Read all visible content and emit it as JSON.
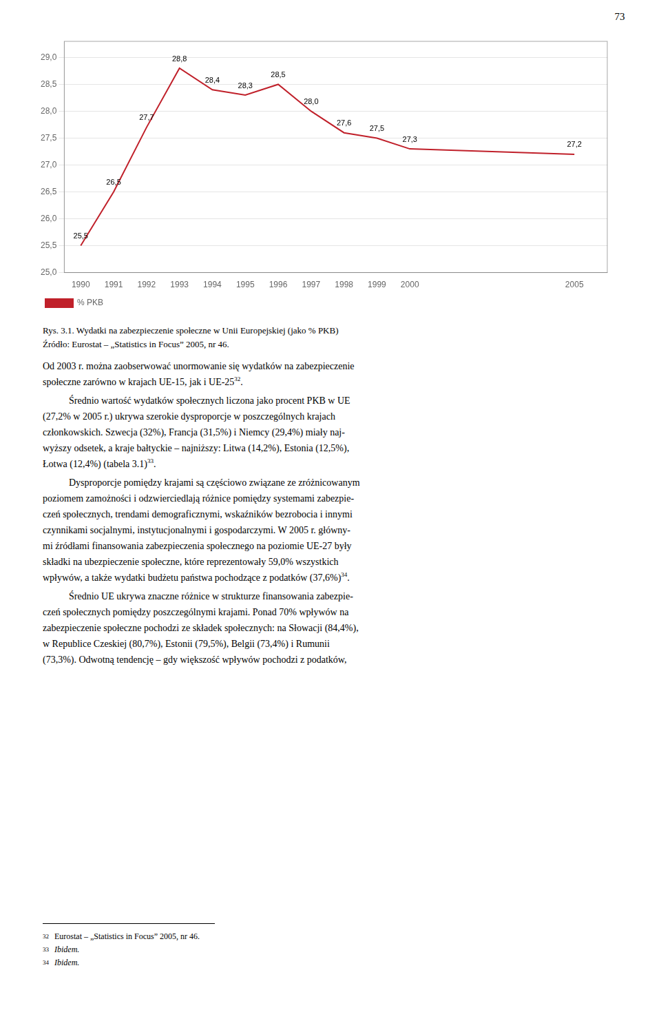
{
  "page_number": "73",
  "chart_data": {
    "type": "line",
    "title": "Rys. 3.1. Wydatki na zabezpieczenie społeczne w Unii Europejskiej (jako % PKB)",
    "subtitle": "Źródło: Eurostat – „Statistics in Focus” 2005, nr 46.",
    "x": [
      1990,
      1991,
      1992,
      1993,
      1994,
      1995,
      1996,
      1997,
      1998,
      1999,
      2000,
      2005
    ],
    "series": [
      {
        "name": "% PKB",
        "color": "#c0202a",
        "values": [
          25.5,
          26.5,
          27.7,
          28.8,
          28.4,
          28.3,
          28.5,
          28.0,
          27.6,
          27.5,
          27.3,
          27.2
        ],
        "value_labels": [
          "25,5",
          "26,5",
          "27,7",
          "28,8",
          "28,4",
          "28,3",
          "28,5",
          "28,0",
          "27,6",
          "27,5",
          "27,3",
          "27,2"
        ]
      }
    ],
    "xlim": [
      1989.5,
      2006
    ],
    "xticks": [
      1990,
      1991,
      1992,
      1993,
      1994,
      1995,
      1996,
      1997,
      1998,
      1999,
      2000,
      2005
    ],
    "ylim": [
      25.0,
      29.3
    ],
    "yticks": [
      {
        "value": 25.0,
        "label": "25,0"
      },
      {
        "value": 25.5,
        "label": "25,5"
      },
      {
        "value": 26.0,
        "label": "26,0"
      },
      {
        "value": 26.5,
        "label": "26,5"
      },
      {
        "value": 27.0,
        "label": "27,0"
      },
      {
        "value": 27.5,
        "label": "27,5"
      },
      {
        "value": 28.0,
        "label": "28,0"
      },
      {
        "value": 28.5,
        "label": "28,5"
      },
      {
        "value": 29.0,
        "label": "29,0"
      }
    ],
    "grid": "y",
    "legend": "bottom",
    "data_labels": true
  },
  "body_lines": [
    {
      "text": "Od 2003 r. można zaobserwować unormowanie się wydatków na zabezpieczenie",
      "indent": false,
      "sup": null,
      "after_sup": null
    },
    {
      "text": "społeczne zarówno w krajach UE-15, jak i UE-25",
      "indent": false,
      "sup": "32",
      "after_sup": "."
    },
    {
      "text": "Średnio wartość wydatków społecznych liczona jako procent PKB w UE",
      "indent": true,
      "sup": null,
      "after_sup": null
    },
    {
      "text": "(27,2% w 2005 r.) ukrywa szerokie dysproporcje w poszczególnych krajach",
      "indent": false,
      "sup": null,
      "after_sup": null
    },
    {
      "text": "członkowskich. Szwecja (32%), Francja (31,5%) i Niemcy (29,4%) miały naj-",
      "indent": false,
      "sup": null,
      "after_sup": null
    },
    {
      "text": "wyższy odsetek, a kraje bałtyckie – najniższy: Litwa (14,2%), Estonia (12,5%),",
      "indent": false,
      "sup": null,
      "after_sup": null
    },
    {
      "text": "Łotwa (12,4%) (tabela 3.1)",
      "indent": false,
      "sup": "33",
      "after_sup": "."
    },
    {
      "text": "Dysproporcje pomiędzy krajami są częściowo związane ze zróżnicowanym",
      "indent": true,
      "sup": null,
      "after_sup": null
    },
    {
      "text": "poziomem zamożności i odzwierciedlają różnice pomiędzy systemami zabezpie-",
      "indent": false,
      "sup": null,
      "after_sup": null
    },
    {
      "text": "czeń społecznych, trendami demograficznymi, wskaźników bezrobocia i innymi",
      "indent": false,
      "sup": null,
      "after_sup": null
    },
    {
      "text": "czynnikami socjalnymi, instytucjonalnymi i gospodarczymi. W 2005 r. główny-",
      "indent": false,
      "sup": null,
      "after_sup": null
    },
    {
      "text": "mi źródłami finansowania zabezpieczenia społecznego na poziomie UE-27 były",
      "indent": false,
      "sup": null,
      "after_sup": null
    },
    {
      "text": "składki na ubezpieczenie społeczne, które reprezentowały 59,0% wszystkich",
      "indent": false,
      "sup": null,
      "after_sup": null
    },
    {
      "text": "wpływów, a także wydatki budżetu państwa pochodzące z podatków (37,6%)",
      "indent": false,
      "sup": "34",
      "after_sup": "."
    },
    {
      "text": "Średnio UE ukrywa znaczne różnice w strukturze finansowania zabezpie-",
      "indent": true,
      "sup": null,
      "after_sup": null
    },
    {
      "text": "czeń społecznych pomiędzy poszczególnymi krajami. Ponad 70% wpływów na",
      "indent": false,
      "sup": null,
      "after_sup": null
    },
    {
      "text": "zabezpieczenie społeczne pochodzi ze składek społecznych: na Słowacji (84,4%),",
      "indent": false,
      "sup": null,
      "after_sup": null
    },
    {
      "text": "w Republice Czeskiej (80,7%), Estonii (79,5%), Belgii (73,4%) i Rumunii",
      "indent": false,
      "sup": null,
      "after_sup": null
    },
    {
      "text": "(73,3%). Odwotną tendencję – gdy większość wpływów pochodzi z podatków,",
      "indent": false,
      "sup": null,
      "after_sup": null
    }
  ],
  "footnotes": [
    {
      "mark": "32",
      "text": "Eurostat – „Statistics in Focus” 2005, nr 46.",
      "italic": false
    },
    {
      "mark": "33",
      "text": "Ibidem.",
      "italic": true
    },
    {
      "mark": "34",
      "text": "Ibidem.",
      "italic": true
    }
  ]
}
